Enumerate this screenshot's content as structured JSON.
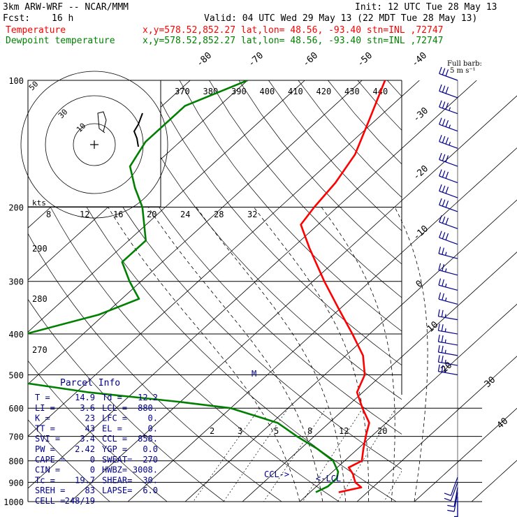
{
  "header": {
    "model": "3km ARW-WRF -- NCAR/MMM",
    "init": "Init: 12 UTC Tue 28 May 13",
    "fcst_label": "Fcst:",
    "fcst_value": "16 h",
    "valid": "Valid: 04 UTC Wed 29 May 13 (22 MDT Tue 28 May 13)"
  },
  "legend": [
    {
      "name": "Temperature",
      "info": "x,y=578.52,852.27   lat,lon= 48.56, -93.40   stn=INL ,72747",
      "color": "#ff0000"
    },
    {
      "name": "Dewpoint temperature",
      "info": "x,y=578.52,852.27   lat,lon= 48.56, -93.40   stn=INL ,72747",
      "color": "#008000"
    }
  ],
  "barb_note": [
    "Full barb:",
    "5 m s⁻¹"
  ],
  "hodograph": {
    "kts_label": "kts",
    "ring_labels": [
      "50",
      "30",
      "10"
    ],
    "speed_ticks": [
      "8",
      "12",
      "16",
      "20",
      "24",
      "28",
      "32"
    ]
  },
  "parcel_info": {
    "title": "Parcel Info",
    "rows": [
      [
        "T  =",
        "14.9",
        "Td =",
        "12.2"
      ],
      [
        "LI =",
        "3.6",
        "LCL =",
        "880."
      ],
      [
        "K  =",
        "23",
        "LFC =",
        "0."
      ],
      [
        "TT =",
        "43",
        "EL =",
        "0."
      ],
      [
        "SVI =",
        "3.4",
        "CCL =",
        "858."
      ],
      [
        "PW =",
        "2.42",
        "YGP =",
        "0.0"
      ],
      [
        "CAPE =",
        "0",
        "SWEAT=",
        "270"
      ],
      [
        "CIN =",
        "0",
        "HWBZ=",
        "3008."
      ],
      [
        "Tc =",
        "19.7",
        "SHEAR=",
        "30."
      ],
      [
        "SREH =",
        "83",
        "LAPSE=",
        "6.0"
      ],
      [
        "CELL =",
        "248/19",
        "",
        ""
      ]
    ]
  },
  "markers": {
    "ccl": "CCL->",
    "lcl": "<-LCL",
    "m": "M"
  },
  "chart_data": {
    "type": "line",
    "diagram": "skew-T log-p",
    "y_axis": {
      "label": "",
      "ticks": [
        100,
        200,
        300,
        400,
        500,
        600,
        700,
        800,
        900,
        1000
      ],
      "scale": "log"
    },
    "isotherm_labels": [
      -80,
      -70,
      -60,
      -50,
      -40,
      -30,
      -20,
      -10,
      0,
      10,
      20,
      30,
      40
    ],
    "theta_labels": [
      "370",
      "380",
      "390",
      "400",
      "410",
      "420",
      "430",
      "440"
    ],
    "theta_side_labels": [
      "290",
      "280",
      "270"
    ],
    "mixing_ratio_labels": [
      "2",
      "3",
      "5",
      "8",
      "12",
      "20"
    ],
    "series": [
      {
        "name": "Temperature",
        "color": "#ff0000",
        "points": [
          [
            100,
            -56
          ],
          [
            125,
            -51
          ],
          [
            150,
            -47
          ],
          [
            175,
            -45
          ],
          [
            200,
            -44
          ],
          [
            220,
            -43
          ],
          [
            250,
            -37
          ],
          [
            300,
            -28
          ],
          [
            350,
            -20
          ],
          [
            400,
            -13
          ],
          [
            450,
            -7
          ],
          [
            500,
            -3
          ],
          [
            550,
            -1
          ],
          [
            600,
            3
          ],
          [
            650,
            7
          ],
          [
            700,
            9
          ],
          [
            750,
            11
          ],
          [
            800,
            13
          ],
          [
            830,
            12
          ],
          [
            860,
            14
          ],
          [
            880,
            15
          ],
          [
            900,
            16
          ],
          [
            925,
            18
          ],
          [
            950,
            15
          ]
        ]
      },
      {
        "name": "Dewpoint temperature",
        "color": "#008000",
        "points": [
          [
            100,
            -80
          ],
          [
            115,
            -86
          ],
          [
            140,
            -86
          ],
          [
            160,
            -84
          ],
          [
            180,
            -79
          ],
          [
            200,
            -74
          ],
          [
            240,
            -67
          ],
          [
            270,
            -67
          ],
          [
            300,
            -62
          ],
          [
            330,
            -57
          ],
          [
            360,
            -61
          ],
          [
            400,
            -70
          ],
          [
            450,
            -83
          ],
          [
            500,
            -72
          ],
          [
            550,
            -48
          ],
          [
            580,
            -30
          ],
          [
            600,
            -20
          ],
          [
            650,
            -9
          ],
          [
            700,
            -3
          ],
          [
            750,
            3
          ],
          [
            800,
            8
          ],
          [
            850,
            11
          ],
          [
            880,
            12
          ],
          [
            920,
            12
          ],
          [
            950,
            11
          ]
        ]
      }
    ],
    "wind_barbs_kt": [
      {
        "p": 100,
        "dir": 290,
        "spd": 30
      },
      {
        "p": 110,
        "dir": 290,
        "spd": 30
      },
      {
        "p": 120,
        "dir": 290,
        "spd": 35
      },
      {
        "p": 132,
        "dir": 290,
        "spd": 35
      },
      {
        "p": 145,
        "dir": 290,
        "spd": 35
      },
      {
        "p": 160,
        "dir": 290,
        "spd": 30
      },
      {
        "p": 175,
        "dir": 290,
        "spd": 30
      },
      {
        "p": 190,
        "dir": 290,
        "spd": 30
      },
      {
        "p": 205,
        "dir": 290,
        "spd": 30
      },
      {
        "p": 225,
        "dir": 290,
        "spd": 30
      },
      {
        "p": 245,
        "dir": 290,
        "spd": 30
      },
      {
        "p": 265,
        "dir": 285,
        "spd": 25
      },
      {
        "p": 290,
        "dir": 285,
        "spd": 25
      },
      {
        "p": 315,
        "dir": 285,
        "spd": 25
      },
      {
        "p": 340,
        "dir": 285,
        "spd": 25
      },
      {
        "p": 370,
        "dir": 280,
        "spd": 25
      },
      {
        "p": 400,
        "dir": 280,
        "spd": 25
      },
      {
        "p": 425,
        "dir": 280,
        "spd": 25
      },
      {
        "p": 450,
        "dir": 280,
        "spd": 25
      },
      {
        "p": 475,
        "dir": 280,
        "spd": 25
      },
      {
        "p": 500,
        "dir": 280,
        "spd": 25
      },
      {
        "p": 875,
        "dir": 200,
        "spd": 10
      },
      {
        "p": 900,
        "dir": 200,
        "spd": 10
      },
      {
        "p": 925,
        "dir": 190,
        "spd": 10
      },
      {
        "p": 950,
        "dir": 190,
        "spd": 10
      },
      {
        "p": 975,
        "dir": 180,
        "spd": 5
      },
      {
        "p": 1000,
        "dir": 180,
        "spd": 5
      }
    ]
  }
}
